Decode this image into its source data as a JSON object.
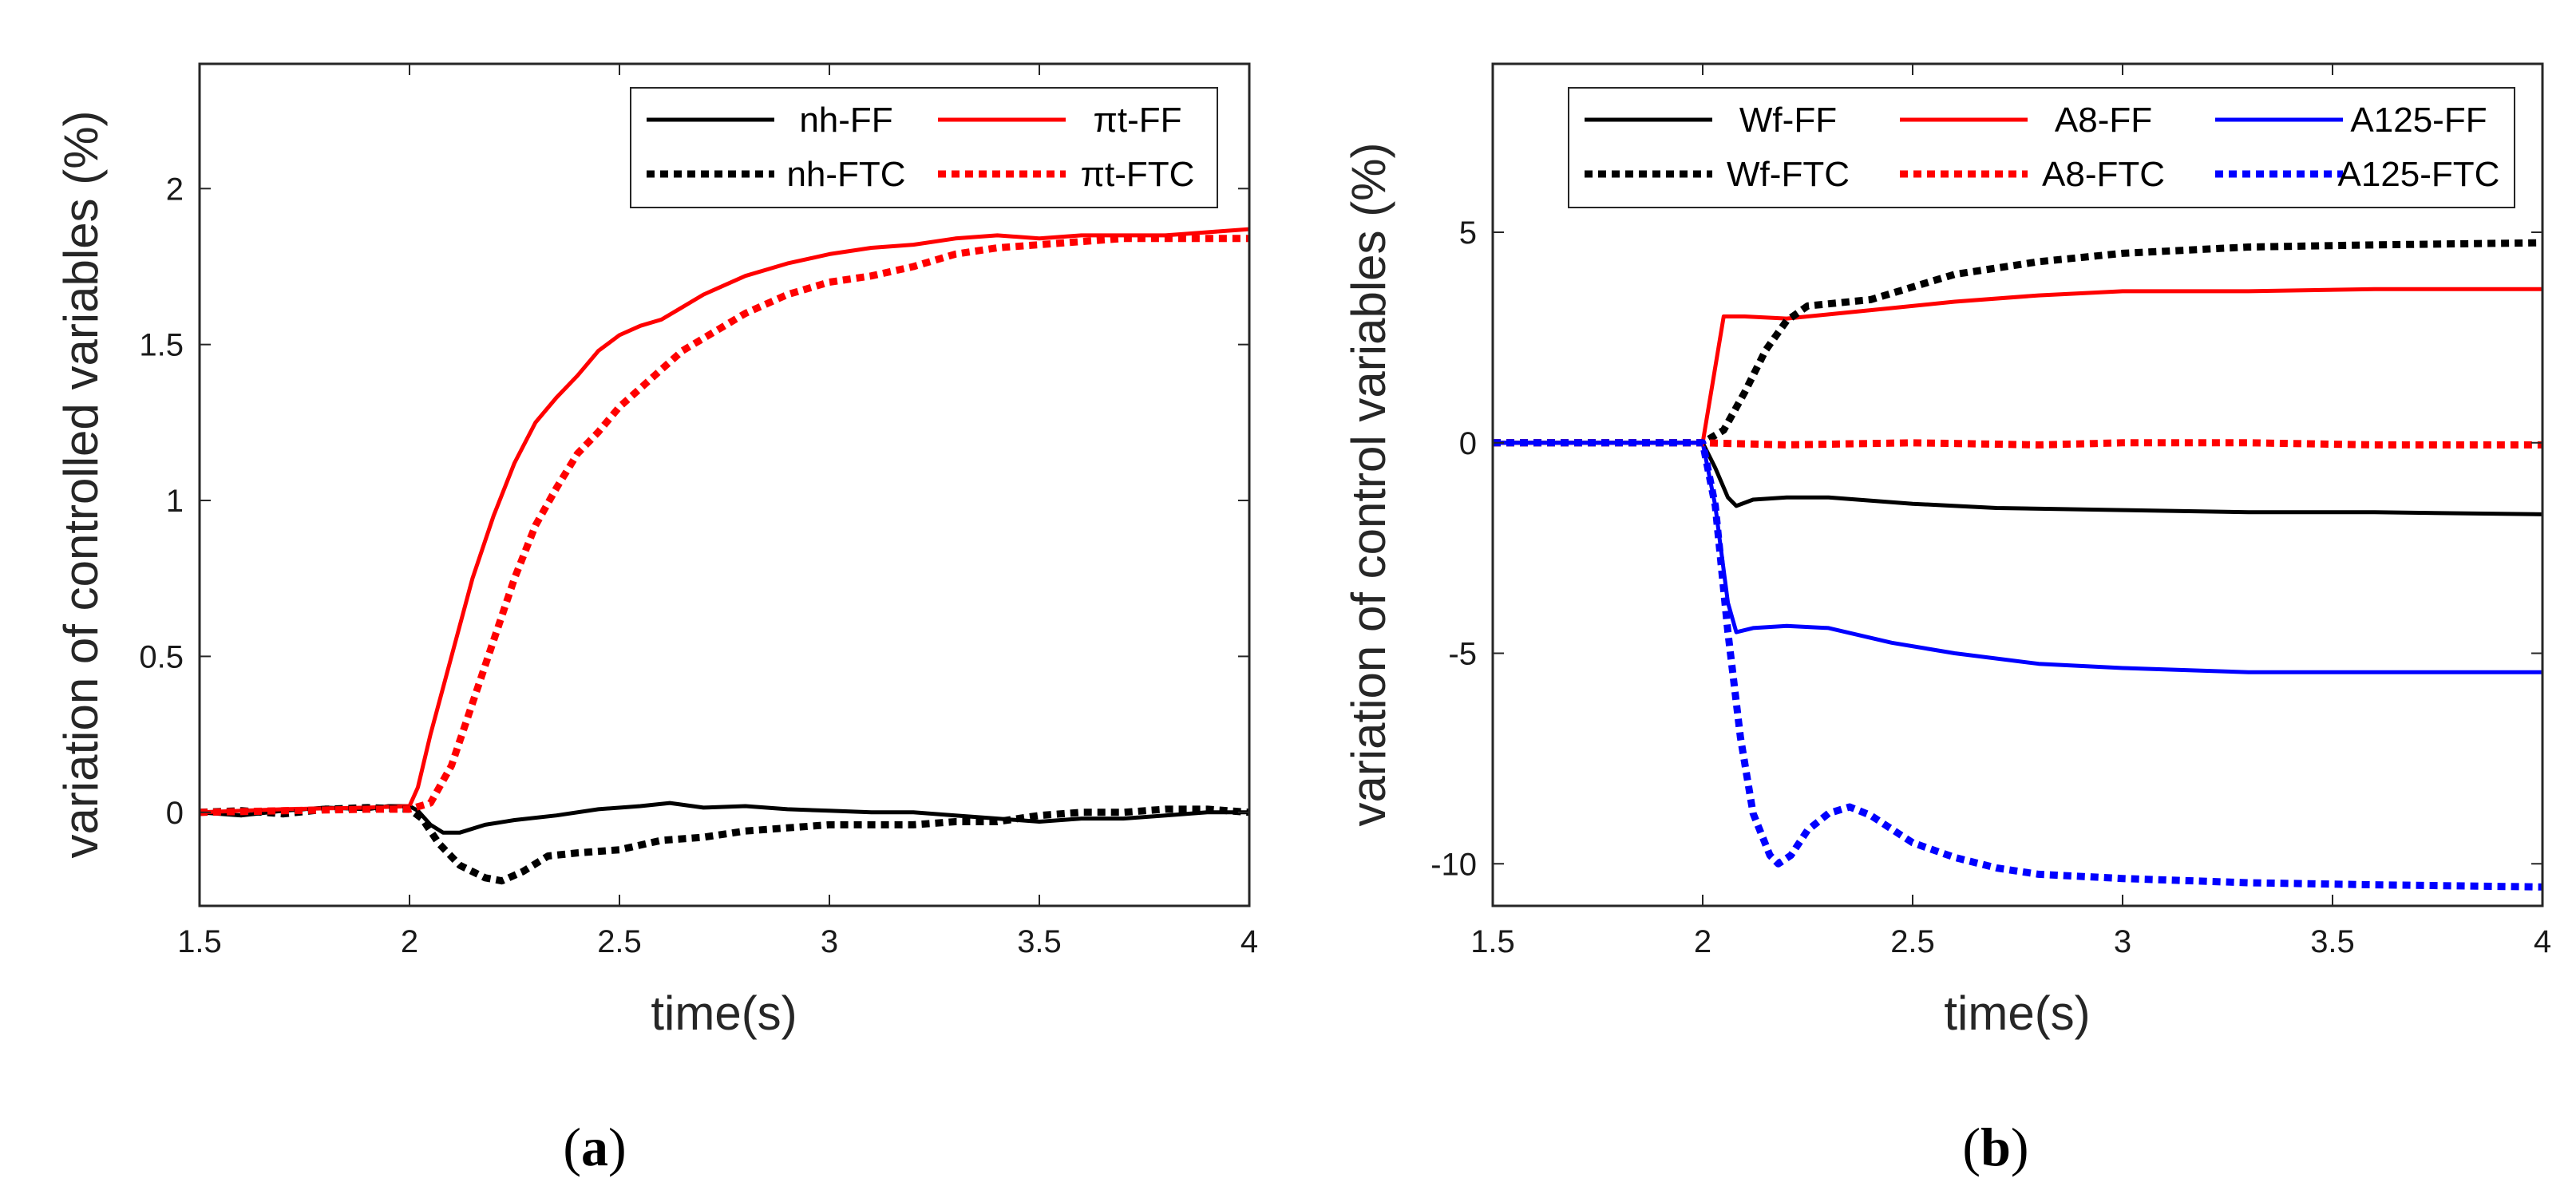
{
  "chart_data": [
    {
      "type": "line",
      "caption": {
        "open": "(",
        "letter": "a",
        "close": ")"
      },
      "xlabel": "time(s)",
      "ylabel": "variation of controlled variables (%)",
      "xlim": [
        1.5,
        4
      ],
      "ylim": [
        -0.3,
        2.4
      ],
      "xticks": [
        1.5,
        2,
        2.5,
        3,
        3.5,
        4
      ],
      "xtick_labels": [
        "1.5",
        "2",
        "2.5",
        "3",
        "3.5",
        "4"
      ],
      "yticks": [
        0,
        0.5,
        1,
        1.5,
        2
      ],
      "ytick_labels": [
        "0",
        "0.5",
        "1",
        "1.5",
        "2"
      ],
      "legend_position": "top-right",
      "legend_columns": 2,
      "series": [
        {
          "name": "nh-FF",
          "color": "#000000",
          "style": "solid",
          "points": [
            [
              1.5,
              0
            ],
            [
              1.6,
              -0.01
            ],
            [
              1.7,
              0.005
            ],
            [
              1.8,
              0.015
            ],
            [
              1.9,
              0.01
            ],
            [
              1.95,
              0.02
            ],
            [
              2.0,
              0.02
            ],
            [
              2.02,
              0.005
            ],
            [
              2.05,
              -0.04
            ],
            [
              2.08,
              -0.065
            ],
            [
              2.12,
              -0.065
            ],
            [
              2.18,
              -0.04
            ],
            [
              2.25,
              -0.025
            ],
            [
              2.35,
              -0.01
            ],
            [
              2.45,
              0.01
            ],
            [
              2.55,
              0.02
            ],
            [
              2.62,
              0.03
            ],
            [
              2.7,
              0.015
            ],
            [
              2.8,
              0.02
            ],
            [
              2.9,
              0.01
            ],
            [
              3.0,
              0.005
            ],
            [
              3.1,
              0.0
            ],
            [
              3.2,
              0.0
            ],
            [
              3.3,
              -0.01
            ],
            [
              3.4,
              -0.02
            ],
            [
              3.5,
              -0.03
            ],
            [
              3.6,
              -0.02
            ],
            [
              3.7,
              -0.02
            ],
            [
              3.8,
              -0.01
            ],
            [
              3.9,
              0.0
            ],
            [
              4.0,
              0.0
            ]
          ]
        },
        {
          "name": "πt-FF",
          "color": "#ff0000",
          "style": "solid",
          "points": [
            [
              1.5,
              0
            ],
            [
              1.7,
              0.01
            ],
            [
              1.9,
              0.015
            ],
            [
              2.0,
              0.02
            ],
            [
              2.02,
              0.08
            ],
            [
              2.05,
              0.25
            ],
            [
              2.1,
              0.5
            ],
            [
              2.15,
              0.75
            ],
            [
              2.2,
              0.95
            ],
            [
              2.25,
              1.12
            ],
            [
              2.3,
              1.25
            ],
            [
              2.35,
              1.33
            ],
            [
              2.4,
              1.4
            ],
            [
              2.45,
              1.48
            ],
            [
              2.5,
              1.53
            ],
            [
              2.55,
              1.56
            ],
            [
              2.6,
              1.58
            ],
            [
              2.65,
              1.62
            ],
            [
              2.7,
              1.66
            ],
            [
              2.8,
              1.72
            ],
            [
              2.9,
              1.76
            ],
            [
              3.0,
              1.79
            ],
            [
              3.1,
              1.81
            ],
            [
              3.2,
              1.82
            ],
            [
              3.3,
              1.84
            ],
            [
              3.4,
              1.85
            ],
            [
              3.5,
              1.84
            ],
            [
              3.6,
              1.85
            ],
            [
              3.7,
              1.85
            ],
            [
              3.8,
              1.85
            ],
            [
              3.9,
              1.86
            ],
            [
              4.0,
              1.87
            ]
          ]
        },
        {
          "name": "nh-FTC",
          "color": "#000000",
          "style": "dotted",
          "points": [
            [
              1.5,
              0
            ],
            [
              1.6,
              0.005
            ],
            [
              1.7,
              -0.005
            ],
            [
              1.8,
              0.01
            ],
            [
              1.9,
              0.015
            ],
            [
              2.0,
              0.01
            ],
            [
              2.03,
              -0.02
            ],
            [
              2.07,
              -0.1
            ],
            [
              2.12,
              -0.17
            ],
            [
              2.18,
              -0.21
            ],
            [
              2.22,
              -0.22
            ],
            [
              2.27,
              -0.19
            ],
            [
              2.33,
              -0.14
            ],
            [
              2.4,
              -0.13
            ],
            [
              2.5,
              -0.12
            ],
            [
              2.6,
              -0.09
            ],
            [
              2.7,
              -0.08
            ],
            [
              2.8,
              -0.06
            ],
            [
              2.9,
              -0.05
            ],
            [
              3.0,
              -0.04
            ],
            [
              3.1,
              -0.04
            ],
            [
              3.2,
              -0.04
            ],
            [
              3.3,
              -0.03
            ],
            [
              3.4,
              -0.03
            ],
            [
              3.5,
              -0.01
            ],
            [
              3.6,
              0.0
            ],
            [
              3.7,
              0.0
            ],
            [
              3.8,
              0.01
            ],
            [
              3.9,
              0.01
            ],
            [
              4.0,
              0.0
            ]
          ]
        },
        {
          "name": "πt-FTC",
          "color": "#ff0000",
          "style": "dotted",
          "points": [
            [
              1.5,
              0
            ],
            [
              1.7,
              0.005
            ],
            [
              1.9,
              0.01
            ],
            [
              2.0,
              0.01
            ],
            [
              2.05,
              0.03
            ],
            [
              2.1,
              0.15
            ],
            [
              2.15,
              0.35
            ],
            [
              2.2,
              0.55
            ],
            [
              2.25,
              0.75
            ],
            [
              2.3,
              0.92
            ],
            [
              2.35,
              1.04
            ],
            [
              2.4,
              1.15
            ],
            [
              2.45,
              1.22
            ],
            [
              2.5,
              1.3
            ],
            [
              2.55,
              1.36
            ],
            [
              2.6,
              1.42
            ],
            [
              2.65,
              1.48
            ],
            [
              2.7,
              1.52
            ],
            [
              2.8,
              1.6
            ],
            [
              2.9,
              1.66
            ],
            [
              3.0,
              1.7
            ],
            [
              3.1,
              1.72
            ],
            [
              3.2,
              1.75
            ],
            [
              3.3,
              1.79
            ],
            [
              3.4,
              1.81
            ],
            [
              3.5,
              1.82
            ],
            [
              3.6,
              1.83
            ],
            [
              3.7,
              1.84
            ],
            [
              3.8,
              1.84
            ],
            [
              3.9,
              1.84
            ],
            [
              4.0,
              1.84
            ]
          ]
        }
      ]
    },
    {
      "type": "line",
      "caption": {
        "open": "(",
        "letter": "b",
        "close": ")"
      },
      "xlabel": "time(s)",
      "ylabel": "variation of control variables (%)",
      "xlim": [
        1.5,
        4
      ],
      "ylim": [
        -11,
        9
      ],
      "xticks": [
        1.5,
        2,
        2.5,
        3,
        3.5,
        4
      ],
      "xtick_labels": [
        "1.5",
        "2",
        "2.5",
        "3",
        "3.5",
        "4"
      ],
      "yticks": [
        -10,
        -5,
        0,
        5
      ],
      "ytick_labels": [
        "-10",
        "-5",
        "0",
        "5"
      ],
      "legend_position": "top-right",
      "legend_columns": 3,
      "series": [
        {
          "name": "Wf-FF",
          "color": "#000000",
          "style": "solid",
          "points": [
            [
              1.5,
              0
            ],
            [
              2.0,
              0
            ],
            [
              2.03,
              -0.6
            ],
            [
              2.06,
              -1.3
            ],
            [
              2.08,
              -1.5
            ],
            [
              2.12,
              -1.35
            ],
            [
              2.2,
              -1.3
            ],
            [
              2.3,
              -1.3
            ],
            [
              2.5,
              -1.45
            ],
            [
              2.7,
              -1.55
            ],
            [
              3.0,
              -1.6
            ],
            [
              3.3,
              -1.65
            ],
            [
              3.6,
              -1.65
            ],
            [
              4.0,
              -1.7
            ]
          ]
        },
        {
          "name": "A8-FF",
          "color": "#ff0000",
          "style": "solid",
          "points": [
            [
              1.5,
              0
            ],
            [
              2.0,
              0
            ],
            [
              2.05,
              3.0
            ],
            [
              2.1,
              3.0
            ],
            [
              2.2,
              2.95
            ],
            [
              2.3,
              3.05
            ],
            [
              2.45,
              3.2
            ],
            [
              2.6,
              3.35
            ],
            [
              2.8,
              3.5
            ],
            [
              3.0,
              3.6
            ],
            [
              3.3,
              3.6
            ],
            [
              3.6,
              3.65
            ],
            [
              4.0,
              3.65
            ]
          ]
        },
        {
          "name": "A125-FF",
          "color": "#0000ff",
          "style": "solid",
          "points": [
            [
              1.5,
              0
            ],
            [
              2.0,
              0
            ],
            [
              2.03,
              -1.5
            ],
            [
              2.06,
              -3.8
            ],
            [
              2.08,
              -4.5
            ],
            [
              2.12,
              -4.4
            ],
            [
              2.2,
              -4.35
            ],
            [
              2.3,
              -4.4
            ],
            [
              2.45,
              -4.75
            ],
            [
              2.6,
              -5.0
            ],
            [
              2.8,
              -5.25
            ],
            [
              3.0,
              -5.35
            ],
            [
              3.3,
              -5.45
            ],
            [
              3.6,
              -5.45
            ],
            [
              4.0,
              -5.45
            ]
          ]
        },
        {
          "name": "Wf-FTC",
          "color": "#000000",
          "style": "dotted",
          "points": [
            [
              1.5,
              0
            ],
            [
              2.0,
              0
            ],
            [
              2.05,
              0.3
            ],
            [
              2.1,
              1.2
            ],
            [
              2.15,
              2.2
            ],
            [
              2.2,
              2.9
            ],
            [
              2.25,
              3.25
            ],
            [
              2.3,
              3.3
            ],
            [
              2.4,
              3.4
            ],
            [
              2.5,
              3.7
            ],
            [
              2.6,
              4.0
            ],
            [
              2.8,
              4.3
            ],
            [
              3.0,
              4.5
            ],
            [
              3.3,
              4.65
            ],
            [
              3.6,
              4.7
            ],
            [
              4.0,
              4.75
            ]
          ]
        },
        {
          "name": "A8-FTC",
          "color": "#ff0000",
          "style": "dotted",
          "points": [
            [
              1.5,
              0
            ],
            [
              2.0,
              0
            ],
            [
              2.2,
              -0.05
            ],
            [
              2.5,
              0.0
            ],
            [
              2.8,
              -0.05
            ],
            [
              3.0,
              0.0
            ],
            [
              3.3,
              0.0
            ],
            [
              3.6,
              -0.05
            ],
            [
              4.0,
              -0.05
            ]
          ]
        },
        {
          "name": "A125-FTC",
          "color": "#0000ff",
          "style": "dotted",
          "points": [
            [
              1.5,
              0
            ],
            [
              2.0,
              0
            ],
            [
              2.03,
              -1.5
            ],
            [
              2.06,
              -4.5
            ],
            [
              2.09,
              -7.0
            ],
            [
              2.12,
              -8.8
            ],
            [
              2.16,
              -9.8
            ],
            [
              2.18,
              -10.0
            ],
            [
              2.21,
              -9.8
            ],
            [
              2.25,
              -9.2
            ],
            [
              2.3,
              -8.8
            ],
            [
              2.35,
              -8.65
            ],
            [
              2.4,
              -8.85
            ],
            [
              2.5,
              -9.5
            ],
            [
              2.6,
              -9.85
            ],
            [
              2.7,
              -10.1
            ],
            [
              2.8,
              -10.25
            ],
            [
              3.0,
              -10.35
            ],
            [
              3.3,
              -10.45
            ],
            [
              3.6,
              -10.5
            ],
            [
              4.0,
              -10.55
            ]
          ]
        }
      ]
    }
  ]
}
